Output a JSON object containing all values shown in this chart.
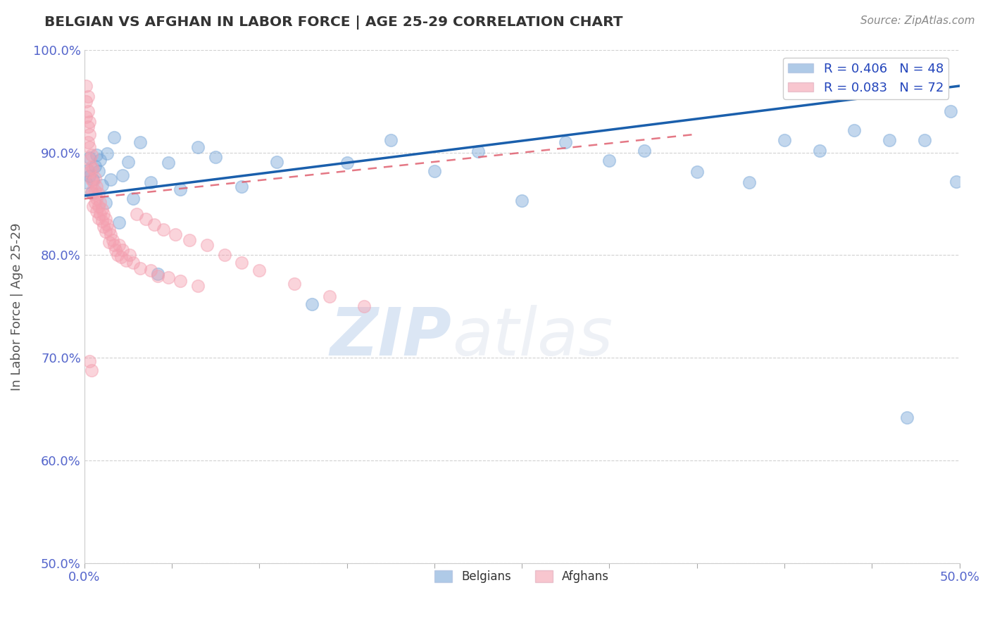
{
  "title": "BELGIAN VS AFGHAN IN LABOR FORCE | AGE 25-29 CORRELATION CHART",
  "source": "Source: ZipAtlas.com",
  "xlabel": "",
  "ylabel": "In Labor Force | Age 25-29",
  "xlim": [
    0.0,
    0.5
  ],
  "ylim": [
    0.5,
    1.0
  ],
  "xticks_major": [
    0.0,
    0.05,
    0.1,
    0.15,
    0.2,
    0.25,
    0.3,
    0.35,
    0.4,
    0.45,
    0.5
  ],
  "xtick_labels_major": [
    "0.0%",
    "",
    "",
    "",
    "",
    "",
    "",
    "",
    "",
    "",
    "50.0%"
  ],
  "yticks": [
    0.5,
    0.6,
    0.7,
    0.8,
    0.9,
    1.0
  ],
  "ytick_labels": [
    "50.0%",
    "60.0%",
    "70.0%",
    "80.0%",
    "90.0%",
    "100.0%"
  ],
  "belgian_R": 0.406,
  "belgian_N": 48,
  "afghan_R": 0.083,
  "afghan_N": 72,
  "belgian_color": "#7aa8d8",
  "afghan_color": "#f4a0b0",
  "belgian_line_color": "#1a5fac",
  "afghan_line_color": "#e06070",
  "background_color": "#ffffff",
  "watermark_zip": "ZIP",
  "watermark_atlas": "atlas",
  "belgian_x": [
    0.001,
    0.002,
    0.003,
    0.003,
    0.004,
    0.005,
    0.006,
    0.007,
    0.008,
    0.009,
    0.01,
    0.012,
    0.013,
    0.015,
    0.017,
    0.02,
    0.022,
    0.025,
    0.028,
    0.032,
    0.038,
    0.042,
    0.048,
    0.055,
    0.065,
    0.075,
    0.09,
    0.11,
    0.13,
    0.15,
    0.175,
    0.2,
    0.225,
    0.25,
    0.275,
    0.3,
    0.32,
    0.35,
    0.38,
    0.4,
    0.42,
    0.44,
    0.46,
    0.47,
    0.48,
    0.49,
    0.495,
    0.498
  ],
  "belgian_y": [
    0.871,
    0.883,
    0.895,
    0.877,
    0.861,
    0.874,
    0.887,
    0.898,
    0.882,
    0.893,
    0.868,
    0.851,
    0.899,
    0.874,
    0.915,
    0.832,
    0.878,
    0.891,
    0.855,
    0.91,
    0.871,
    0.782,
    0.89,
    0.864,
    0.905,
    0.896,
    0.867,
    0.891,
    0.752,
    0.89,
    0.912,
    0.882,
    0.901,
    0.853,
    0.91,
    0.892,
    0.902,
    0.881,
    0.871,
    0.912,
    0.902,
    0.922,
    0.912,
    0.642,
    0.912,
    0.96,
    0.94,
    0.872
  ],
  "afghan_x": [
    0.001,
    0.001,
    0.001,
    0.002,
    0.002,
    0.002,
    0.002,
    0.003,
    0.003,
    0.003,
    0.003,
    0.003,
    0.004,
    0.004,
    0.004,
    0.004,
    0.005,
    0.005,
    0.005,
    0.005,
    0.006,
    0.006,
    0.006,
    0.007,
    0.007,
    0.007,
    0.008,
    0.008,
    0.008,
    0.009,
    0.009,
    0.01,
    0.01,
    0.011,
    0.011,
    0.012,
    0.012,
    0.013,
    0.014,
    0.014,
    0.015,
    0.016,
    0.017,
    0.018,
    0.019,
    0.02,
    0.021,
    0.022,
    0.024,
    0.026,
    0.028,
    0.03,
    0.032,
    0.035,
    0.038,
    0.04,
    0.042,
    0.045,
    0.048,
    0.052,
    0.055,
    0.06,
    0.065,
    0.07,
    0.08,
    0.09,
    0.1,
    0.12,
    0.14,
    0.16,
    0.003,
    0.004
  ],
  "afghan_y": [
    0.965,
    0.95,
    0.935,
    0.955,
    0.94,
    0.925,
    0.91,
    0.93,
    0.918,
    0.905,
    0.893,
    0.881,
    0.898,
    0.886,
    0.874,
    0.862,
    0.884,
    0.872,
    0.86,
    0.848,
    0.875,
    0.863,
    0.851,
    0.867,
    0.855,
    0.843,
    0.86,
    0.848,
    0.836,
    0.852,
    0.84,
    0.845,
    0.833,
    0.84,
    0.828,
    0.835,
    0.823,
    0.83,
    0.825,
    0.813,
    0.82,
    0.815,
    0.81,
    0.805,
    0.8,
    0.81,
    0.798,
    0.805,
    0.795,
    0.8,
    0.793,
    0.84,
    0.787,
    0.835,
    0.785,
    0.83,
    0.78,
    0.825,
    0.778,
    0.82,
    0.775,
    0.815,
    0.77,
    0.81,
    0.8,
    0.793,
    0.785,
    0.772,
    0.76,
    0.75,
    0.697,
    0.688
  ],
  "belgian_trend_x": [
    0.0,
    0.5
  ],
  "belgian_trend_y": [
    0.858,
    0.965
  ],
  "afghan_trend_x": [
    0.0,
    0.35
  ],
  "afghan_trend_y": [
    0.855,
    0.918
  ]
}
